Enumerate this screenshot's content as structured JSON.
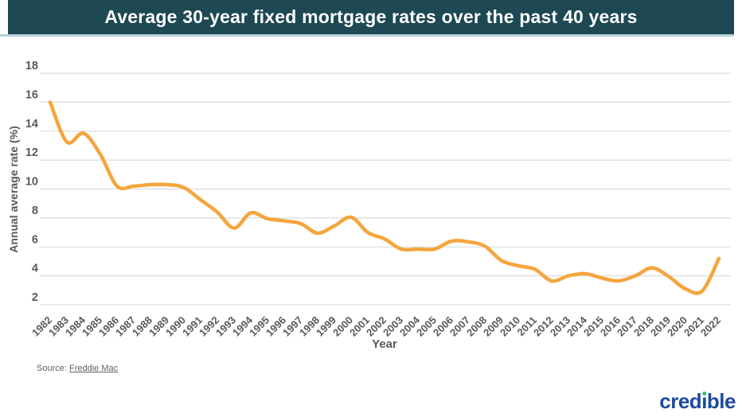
{
  "header": {
    "title": "Average 30-year fixed mortgage rates over the past 40 years",
    "background_color": "#1d4854",
    "underline_color": "#b5d1dc"
  },
  "chart_data": {
    "type": "line",
    "title": "Average 30-year fixed mortgage rates over the past 40 years",
    "xlabel": "Year",
    "ylabel": "Annual average rate (%)",
    "x": [
      1982,
      1983,
      1984,
      1985,
      1986,
      1987,
      1988,
      1989,
      1990,
      1991,
      1992,
      1993,
      1994,
      1995,
      1996,
      1997,
      1998,
      1999,
      2000,
      2001,
      2002,
      2003,
      2004,
      2005,
      2006,
      2007,
      2008,
      2009,
      2010,
      2011,
      2012,
      2013,
      2014,
      2015,
      2016,
      2017,
      2018,
      2019,
      2020,
      2021,
      2022
    ],
    "values": [
      16.0,
      13.25,
      13.85,
      12.4,
      10.2,
      10.2,
      10.3,
      10.3,
      10.1,
      9.25,
      8.4,
      7.3,
      8.35,
      7.95,
      7.8,
      7.6,
      6.95,
      7.45,
      8.05,
      7.0,
      6.55,
      5.85,
      5.85,
      5.85,
      6.4,
      6.35,
      6.05,
      5.05,
      4.7,
      4.45,
      3.65,
      4.0,
      4.15,
      3.85,
      3.65,
      4.0,
      4.55,
      3.95,
      3.1,
      2.95,
      5.2
    ],
    "yticks": [
      2,
      4,
      6,
      8,
      10,
      12,
      14,
      16,
      18
    ],
    "ylim": [
      2,
      18
    ],
    "grid": true,
    "legend": "none",
    "line_color": "#f5a53d",
    "gridline_color": "#dcdcdc",
    "tick_label_color": "#58595b"
  },
  "source": {
    "label": "Source:",
    "link_text": "Freddie Mac"
  },
  "logo": {
    "text": "credible",
    "pre": "cred",
    "i": "i",
    "post": "ble",
    "blue": "#1e4b9f",
    "green_dot": "#3cb878"
  }
}
